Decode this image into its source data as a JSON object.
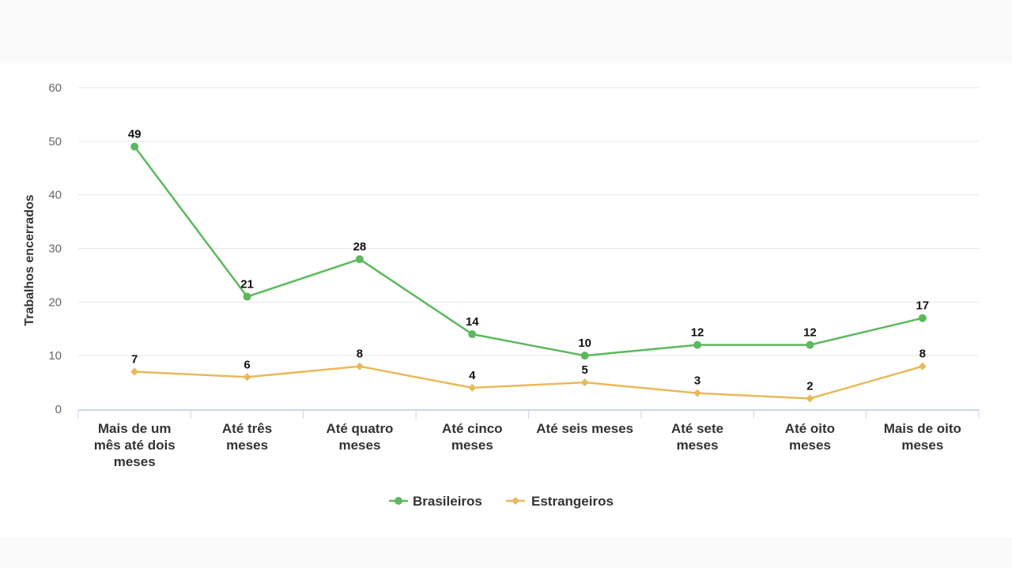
{
  "chart_data": {
    "type": "line",
    "title": "",
    "xlabel": "",
    "ylabel": "Trabalhos encerrados",
    "ylim": [
      0,
      60
    ],
    "yticks": [
      0,
      10,
      20,
      30,
      40,
      50,
      60
    ],
    "grid": true,
    "legend_position": "bottom",
    "categories": [
      [
        "Mais de um",
        "mês até dois",
        "meses"
      ],
      [
        "Até três",
        "meses"
      ],
      [
        "Até quatro",
        "meses"
      ],
      [
        "Até cinco",
        "meses"
      ],
      [
        "Até seis meses"
      ],
      [
        "Até sete",
        "meses"
      ],
      [
        "Até oito",
        "meses"
      ],
      [
        "Mais de oito",
        "meses"
      ]
    ],
    "series": [
      {
        "name": "Brasileiros",
        "values": [
          49,
          21,
          28,
          14,
          10,
          12,
          12,
          17
        ],
        "color": "#5cb85c",
        "marker": "circle"
      },
      {
        "name": "Estrangeiros",
        "values": [
          7,
          6,
          8,
          4,
          5,
          3,
          2,
          8
        ],
        "color": "#e8b95a",
        "marker": "diamond"
      }
    ]
  }
}
